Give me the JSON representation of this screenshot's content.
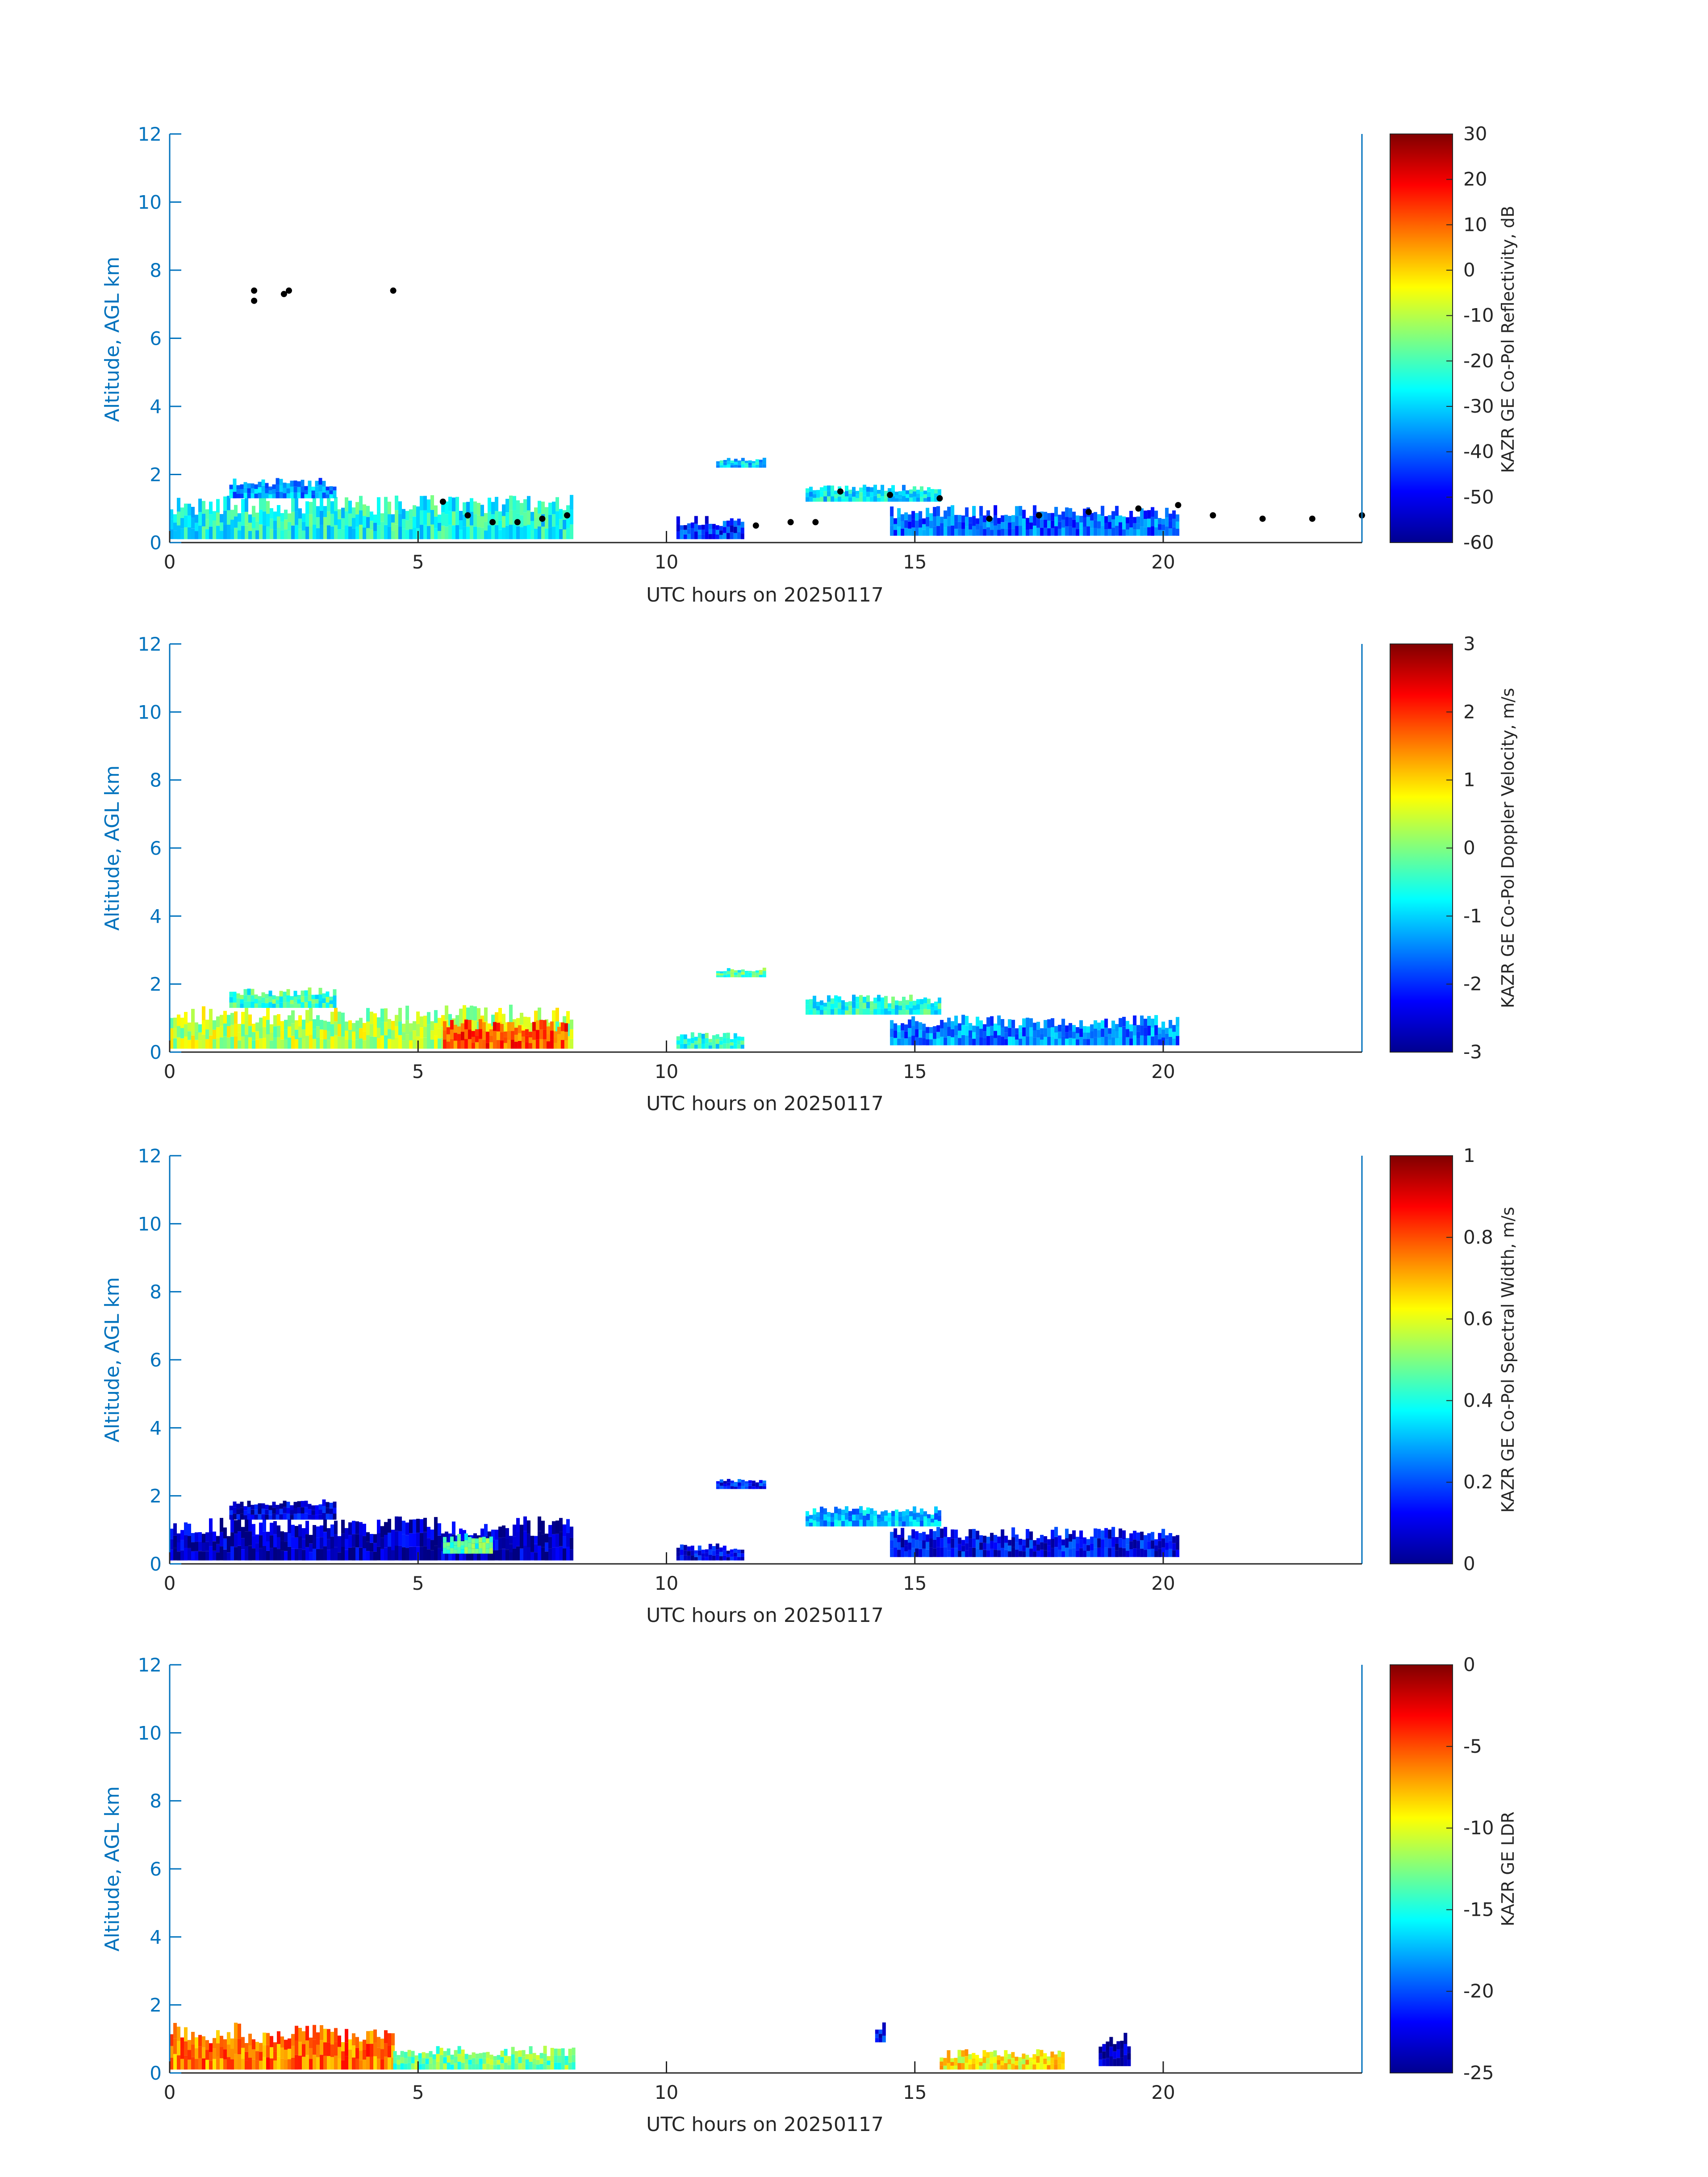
{
  "chart_data": [
    {
      "type": "heatmap",
      "xlabel": "UTC hours on 20250117",
      "ylabel": "Altitude, AGL km",
      "xlim": [
        0,
        24
      ],
      "ylim": [
        0,
        12
      ],
      "x_ticks": [
        0,
        5,
        10,
        15,
        20
      ],
      "y_ticks": [
        0,
        2,
        4,
        6,
        8,
        10,
        12
      ],
      "colorbar": {
        "label": "KAZR GE Co-Pol Reflectivity, dB",
        "min": -60,
        "max": 30,
        "ticks": [
          30,
          20,
          10,
          0,
          -10,
          -20,
          -30,
          -40,
          -50,
          -60
        ]
      },
      "regions": [
        {
          "t0": 0.0,
          "t1": 8.1,
          "base_km": 0.1,
          "top_km": 1.4,
          "value": -25
        },
        {
          "t0": 1.2,
          "t1": 3.3,
          "base_km": 1.3,
          "top_km": 1.9,
          "value": -35
        },
        {
          "t0": 10.2,
          "t1": 11.5,
          "base_km": 0.1,
          "top_km": 0.8,
          "value": -45
        },
        {
          "t0": 11.0,
          "t1": 12.0,
          "base_km": 2.2,
          "top_km": 2.5,
          "value": -30
        },
        {
          "t0": 12.8,
          "t1": 15.5,
          "base_km": 1.2,
          "top_km": 1.7,
          "value": -28
        },
        {
          "t0": 14.5,
          "t1": 20.3,
          "base_km": 0.2,
          "top_km": 1.1,
          "value": -40
        }
      ],
      "overlay_points": {
        "color": "#000000",
        "x": [
          1.7,
          1.7,
          2.3,
          2.4,
          4.5,
          5.5,
          6.0,
          6.5,
          7.0,
          7.5,
          8.0,
          11.8,
          12.5,
          13.0,
          13.5,
          14.5,
          15.5,
          16.5,
          17.5,
          18.5,
          19.5,
          20.3,
          21.0,
          22.0,
          23.0,
          24.0
        ],
        "y": [
          7.1,
          7.4,
          7.3,
          7.4,
          7.4,
          1.2,
          0.8,
          0.6,
          0.6,
          0.7,
          0.8,
          0.5,
          0.6,
          0.6,
          1.5,
          1.4,
          1.3,
          0.7,
          0.8,
          0.9,
          1.0,
          1.1,
          0.8,
          0.7,
          0.7,
          0.8
        ]
      }
    },
    {
      "type": "heatmap",
      "xlabel": "UTC hours on 20250117",
      "ylabel": "Altitude, AGL km",
      "xlim": [
        0,
        24
      ],
      "ylim": [
        0,
        12
      ],
      "x_ticks": [
        0,
        5,
        10,
        15,
        20
      ],
      "y_ticks": [
        0,
        2,
        4,
        6,
        8,
        10,
        12
      ],
      "colorbar": {
        "label": "KAZR GE Co-Pol Doppler Velocity, m/s",
        "min": -3,
        "max": 3,
        "ticks": [
          3,
          2,
          1,
          0,
          -1,
          -2,
          -3
        ]
      },
      "regions": [
        {
          "t0": 0.0,
          "t1": 8.1,
          "base_km": 0.1,
          "top_km": 1.4,
          "value": 0.3
        },
        {
          "t0": 5.5,
          "t1": 8.0,
          "base_km": 0.1,
          "top_km": 1.0,
          "value": 1.8
        },
        {
          "t0": 1.2,
          "t1": 3.3,
          "base_km": 1.3,
          "top_km": 1.9,
          "value": -0.4
        },
        {
          "t0": 10.2,
          "t1": 11.5,
          "base_km": 0.1,
          "top_km": 0.6,
          "value": -0.5
        },
        {
          "t0": 11.0,
          "t1": 12.0,
          "base_km": 2.2,
          "top_km": 2.5,
          "value": -0.3
        },
        {
          "t0": 12.8,
          "t1": 15.5,
          "base_km": 1.1,
          "top_km": 1.7,
          "value": -0.6
        },
        {
          "t0": 14.5,
          "t1": 20.3,
          "base_km": 0.2,
          "top_km": 1.1,
          "value": -1.5
        }
      ]
    },
    {
      "type": "heatmap",
      "xlabel": "UTC hours on 20250117",
      "ylabel": "Altitude, AGL km",
      "xlim": [
        0,
        24
      ],
      "ylim": [
        0,
        12
      ],
      "x_ticks": [
        0,
        5,
        10,
        15,
        20
      ],
      "y_ticks": [
        0,
        2,
        4,
        6,
        8,
        10,
        12
      ],
      "colorbar": {
        "label": "KAZR GE Co-Pol Spectral Width, m/s",
        "min": 0,
        "max": 1,
        "ticks": [
          1,
          0.8,
          0.6,
          0.4,
          0.2,
          0
        ]
      },
      "regions": [
        {
          "t0": 0.0,
          "t1": 8.1,
          "base_km": 0.1,
          "top_km": 1.4,
          "value": 0.05
        },
        {
          "t0": 1.2,
          "t1": 3.3,
          "base_km": 1.3,
          "top_km": 1.9,
          "value": 0.08
        },
        {
          "t0": 5.5,
          "t1": 6.5,
          "base_km": 0.3,
          "top_km": 0.9,
          "value": 0.45
        },
        {
          "t0": 10.2,
          "t1": 11.5,
          "base_km": 0.1,
          "top_km": 0.6,
          "value": 0.1
        },
        {
          "t0": 11.0,
          "t1": 12.0,
          "base_km": 2.2,
          "top_km": 2.5,
          "value": 0.15
        },
        {
          "t0": 12.8,
          "t1": 15.5,
          "base_km": 1.1,
          "top_km": 1.7,
          "value": 0.3
        },
        {
          "t0": 14.5,
          "t1": 20.3,
          "base_km": 0.2,
          "top_km": 1.1,
          "value": 0.12
        }
      ]
    },
    {
      "type": "heatmap",
      "xlabel": "UTC hours on 20250117",
      "ylabel": "Altitude, AGL km",
      "xlim": [
        0,
        24
      ],
      "ylim": [
        0,
        12
      ],
      "x_ticks": [
        0,
        5,
        10,
        15,
        20
      ],
      "y_ticks": [
        0,
        2,
        4,
        6,
        8,
        10,
        12
      ],
      "colorbar": {
        "label": "KAZR GE LDR",
        "min": -25,
        "max": 0,
        "ticks": [
          0,
          -5,
          -10,
          -15,
          -20,
          -25
        ]
      },
      "regions": [
        {
          "t0": 0.0,
          "t1": 4.5,
          "base_km": 0.1,
          "top_km": 1.5,
          "value": -6
        },
        {
          "t0": 4.5,
          "t1": 8.1,
          "base_km": 0.1,
          "top_km": 0.8,
          "value": -13
        },
        {
          "t0": 14.2,
          "t1": 14.4,
          "base_km": 0.9,
          "top_km": 1.5,
          "value": -22
        },
        {
          "t0": 15.5,
          "t1": 18.0,
          "base_km": 0.1,
          "top_km": 0.7,
          "value": -9
        },
        {
          "t0": 18.7,
          "t1": 19.3,
          "base_km": 0.2,
          "top_km": 1.2,
          "value": -24
        }
      ]
    }
  ]
}
